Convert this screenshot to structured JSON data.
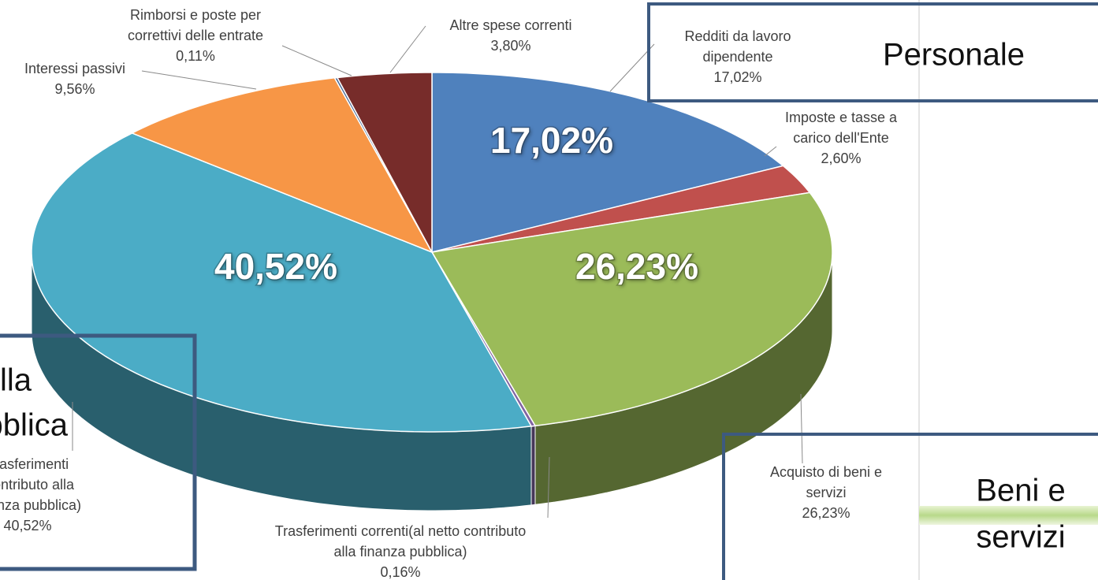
{
  "chart_data": {
    "type": "pie3d",
    "categories": [
      "Redditi da lavoro dipendente",
      "Imposte e tasse a carico dell'Ente",
      "Acquisto di beni e servizi",
      "Trasferimenti correnti(al netto contributo alla finanza pubblica)",
      "Trasferimenti (contributo alla finanza pubblica)",
      "Interessi passivi",
      "Rimborsi e poste per correttivi delle entrate",
      "Altre spese correnti"
    ],
    "values": [
      17.02,
      2.6,
      26.23,
      0.16,
      40.52,
      9.56,
      0.11,
      3.8
    ],
    "value_labels": [
      "17,02%",
      "2,60%",
      "26,23%",
      "0,16%",
      "40,52%",
      "9,56%",
      "0,11%",
      "3,80%"
    ],
    "colors": [
      "#4f81bd",
      "#c0504d",
      "#9bbb59",
      "#8064a2",
      "#4bacc6",
      "#f79646",
      "#4a6a96",
      "#772c2a"
    ],
    "annotations": [
      {
        "lines": [
          "Personale"
        ]
      },
      {
        "lines": [
          "Beni e",
          "servizi"
        ]
      },
      {
        "lines": [
          "Contributo alla",
          "finanza pubblica"
        ]
      }
    ]
  }
}
